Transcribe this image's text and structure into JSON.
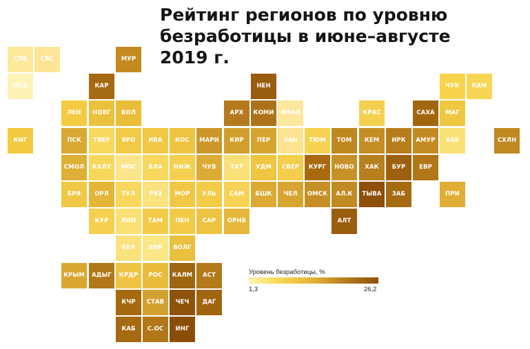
{
  "title": {
    "line1": "Рейтинг регионов по уровню",
    "line2": "безработицы в июне–августе",
    "line3": "2019 г."
  },
  "legend": {
    "title": "Уровень безработицы, %",
    "min": "1,3",
    "max": "26,2",
    "colors": [
      "#fef4a9",
      "#f7d54e",
      "#e2b23b",
      "#b77b1d",
      "#8d4f0a"
    ]
  },
  "regions": [
    {
      "label": "СПБ",
      "col": 0,
      "row": 0,
      "color": "#fde99a"
    },
    {
      "label": "СВС",
      "col": 1,
      "row": 0,
      "color": "#fde596"
    },
    {
      "label": "МУР",
      "col": 4,
      "row": 0,
      "color": "#c48a1f"
    },
    {
      "label": "МСК",
      "col": 0,
      "row": 1,
      "color": "#fef2b6"
    },
    {
      "label": "КАР",
      "col": 3,
      "row": 1,
      "color": "#a66a12"
    },
    {
      "label": "НЕН",
      "col": 9,
      "row": 1,
      "color": "#9a5c0f"
    },
    {
      "label": "ЧУК",
      "col": 16,
      "row": 1,
      "color": "#f7d44b"
    },
    {
      "label": "КАМ",
      "col": 17,
      "row": 1,
      "color": "#f7d655"
    },
    {
      "label": "ЛЕН",
      "col": 2,
      "row": 2,
      "color": "#f5cb42"
    },
    {
      "label": "НОВГ",
      "col": 3,
      "row": 2,
      "color": "#ebc03c"
    },
    {
      "label": "ВОЛ",
      "col": 4,
      "row": 2,
      "color": "#e9bd38"
    },
    {
      "label": "АРХ",
      "col": 8,
      "row": 2,
      "color": "#b47a1d"
    },
    {
      "label": "КОМИ",
      "col": 9,
      "row": 2,
      "color": "#ac7219"
    },
    {
      "label": "ЯМАЛ",
      "col": 10,
      "row": 2,
      "color": "#fde79c"
    },
    {
      "label": "КРАС",
      "col": 13,
      "row": 2,
      "color": "#f5cf4f"
    },
    {
      "label": "САХА",
      "col": 15,
      "row": 2,
      "color": "#a2660f"
    },
    {
      "label": "МАГ",
      "col": 16,
      "row": 2,
      "color": "#f0c740"
    },
    {
      "label": "КНГ",
      "col": 0,
      "row": 3,
      "color": "#f3c940"
    },
    {
      "label": "ПСК",
      "col": 2,
      "row": 3,
      "color": "#d9a832"
    },
    {
      "label": "ТВЕР",
      "col": 3,
      "row": 3,
      "color": "#f9d85e"
    },
    {
      "label": "ЯРО",
      "col": 4,
      "row": 3,
      "color": "#f3ca45"
    },
    {
      "label": "ИВА",
      "col": 5,
      "row": 3,
      "color": "#f2c844"
    },
    {
      "label": "КОС",
      "col": 6,
      "row": 3,
      "color": "#eec33f"
    },
    {
      "label": "МАРИ",
      "col": 7,
      "row": 3,
      "color": "#cc9728"
    },
    {
      "label": "КИР",
      "col": 8,
      "row": 3,
      "color": "#d29f2d"
    },
    {
      "label": "ПЕР",
      "col": 9,
      "row": 3,
      "color": "#d6a530"
    },
    {
      "label": "ХАН",
      "col": 10,
      "row": 3,
      "color": "#fde390"
    },
    {
      "label": "ТЮМ",
      "col": 11,
      "row": 3,
      "color": "#f6d252"
    },
    {
      "label": "ТОМ",
      "col": 12,
      "row": 3,
      "color": "#bf871f"
    },
    {
      "label": "КЕМ",
      "col": 13,
      "row": 3,
      "color": "#c58d24"
    },
    {
      "label": "ИРК",
      "col": 14,
      "row": 3,
      "color": "#b77d1b"
    },
    {
      "label": "АМУР",
      "col": 15,
      "row": 3,
      "color": "#c48b23"
    },
    {
      "label": "ХАБ",
      "col": 16,
      "row": 3,
      "color": "#fae075"
    },
    {
      "label": "СХЛН",
      "col": 18,
      "row": 3,
      "color": "#c08820"
    },
    {
      "label": "СМОЛ",
      "col": 2,
      "row": 4,
      "color": "#dfae34"
    },
    {
      "label": "КАЛУ",
      "col": 3,
      "row": 4,
      "color": "#f7d65a"
    },
    {
      "label": "МОС",
      "col": 4,
      "row": 4,
      "color": "#fbe48a"
    },
    {
      "label": "ВЛА",
      "col": 5,
      "row": 4,
      "color": "#f8d759"
    },
    {
      "label": "НИЖ",
      "col": 6,
      "row": 4,
      "color": "#f5d050"
    },
    {
      "label": "ЧУВ",
      "col": 7,
      "row": 4,
      "color": "#ddab33"
    },
    {
      "label": "ТАТ",
      "col": 8,
      "row": 4,
      "color": "#fbe077"
    },
    {
      "label": "УДМ",
      "col": 9,
      "row": 4,
      "color": "#efc640"
    },
    {
      "label": "СВЕР",
      "col": 10,
      "row": 4,
      "color": "#f4cd4a"
    },
    {
      "label": "КУРГ",
      "col": 11,
      "row": 4,
      "color": "#a8690f"
    },
    {
      "label": "НОВО",
      "col": 12,
      "row": 4,
      "color": "#c89128"
    },
    {
      "label": "ХАК",
      "col": 13,
      "row": 4,
      "color": "#b87f1d"
    },
    {
      "label": "БУР",
      "col": 14,
      "row": 4,
      "color": "#9d600e"
    },
    {
      "label": "ЕВР",
      "col": 15,
      "row": 4,
      "color": "#b27619"
    },
    {
      "label": "БРЯ",
      "col": 2,
      "row": 5,
      "color": "#f1c845"
    },
    {
      "label": "ОРЛ",
      "col": 3,
      "row": 5,
      "color": "#e5b537"
    },
    {
      "label": "ТУЛ",
      "col": 4,
      "row": 5,
      "color": "#f8d75c"
    },
    {
      "label": "РЯЗ",
      "col": 5,
      "row": 5,
      "color": "#fbe27f"
    },
    {
      "label": "МОР",
      "col": 6,
      "row": 5,
      "color": "#f1c845"
    },
    {
      "label": "УЛЬ",
      "col": 7,
      "row": 5,
      "color": "#f3cb47"
    },
    {
      "label": "САМ",
      "col": 8,
      "row": 5,
      "color": "#f6d355"
    },
    {
      "label": "БШК",
      "col": 9,
      "row": 5,
      "color": "#dcaa33"
    },
    {
      "label": "ЧЕЛ",
      "col": 10,
      "row": 5,
      "color": "#d7a531"
    },
    {
      "label": "ОМСК",
      "col": 11,
      "row": 5,
      "color": "#c68f25"
    },
    {
      "label": "АЛ.К",
      "col": 12,
      "row": 5,
      "color": "#c28a22"
    },
    {
      "label": "ТЫВА",
      "col": 13,
      "row": 5,
      "color": "#8d4f0a"
    },
    {
      "label": "ЗАБ",
      "col": 14,
      "row": 5,
      "color": "#a56a12"
    },
    {
      "label": "ПРИ",
      "col": 16,
      "row": 5,
      "color": "#e0ae35"
    },
    {
      "label": "КУР",
      "col": 3,
      "row": 6,
      "color": "#f5cf4e"
    },
    {
      "label": "ЛИП",
      "col": 4,
      "row": 6,
      "color": "#fae072"
    },
    {
      "label": "ТАМ",
      "col": 5,
      "row": 6,
      "color": "#f3cb47"
    },
    {
      "label": "ПЕН",
      "col": 6,
      "row": 6,
      "color": "#f2ca46"
    },
    {
      "label": "САР",
      "col": 7,
      "row": 6,
      "color": "#eec342"
    },
    {
      "label": "ОРНБ",
      "col": 8,
      "row": 6,
      "color": "#e6b73a"
    },
    {
      "label": "АЛТ",
      "col": 12,
      "row": 6,
      "color": "#9b5d0e"
    },
    {
      "label": "БЕЛ",
      "col": 4,
      "row": 7,
      "color": "#fbe27c"
    },
    {
      "label": "ВОР",
      "col": 5,
      "row": 7,
      "color": "#fae786"
    },
    {
      "label": "ВОЛГ",
      "col": 6,
      "row": 7,
      "color": "#eac03f"
    },
    {
      "label": "КРЫМ",
      "col": 2,
      "row": 8,
      "color": "#d8a631"
    },
    {
      "label": "АДЫГ",
      "col": 3,
      "row": 8,
      "color": "#b27818"
    },
    {
      "label": "КРДР",
      "col": 4,
      "row": 8,
      "color": "#eec444"
    },
    {
      "label": "РОС",
      "col": 5,
      "row": 8,
      "color": "#e8bc3a"
    },
    {
      "label": "КАЛМ",
      "col": 6,
      "row": 8,
      "color": "#a06510"
    },
    {
      "label": "АСТ",
      "col": 7,
      "row": 8,
      "color": "#b37a1b"
    },
    {
      "label": "КЧР",
      "col": 4,
      "row": 9,
      "color": "#a56910"
    },
    {
      "label": "СТАВ",
      "col": 5,
      "row": 9,
      "color": "#d3a130"
    },
    {
      "label": "ЧЕЧ",
      "col": 6,
      "row": 9,
      "color": "#8f520a"
    },
    {
      "label": "ДАГ",
      "col": 7,
      "row": 9,
      "color": "#a1650f"
    },
    {
      "label": "КАБ",
      "col": 4,
      "row": 10,
      "color": "#a56a12"
    },
    {
      "label": "С.ОС",
      "col": 5,
      "row": 10,
      "color": "#b27719"
    },
    {
      "label": "ИНГ",
      "col": 6,
      "row": 10,
      "color": "#8b4e09"
    }
  ]
}
